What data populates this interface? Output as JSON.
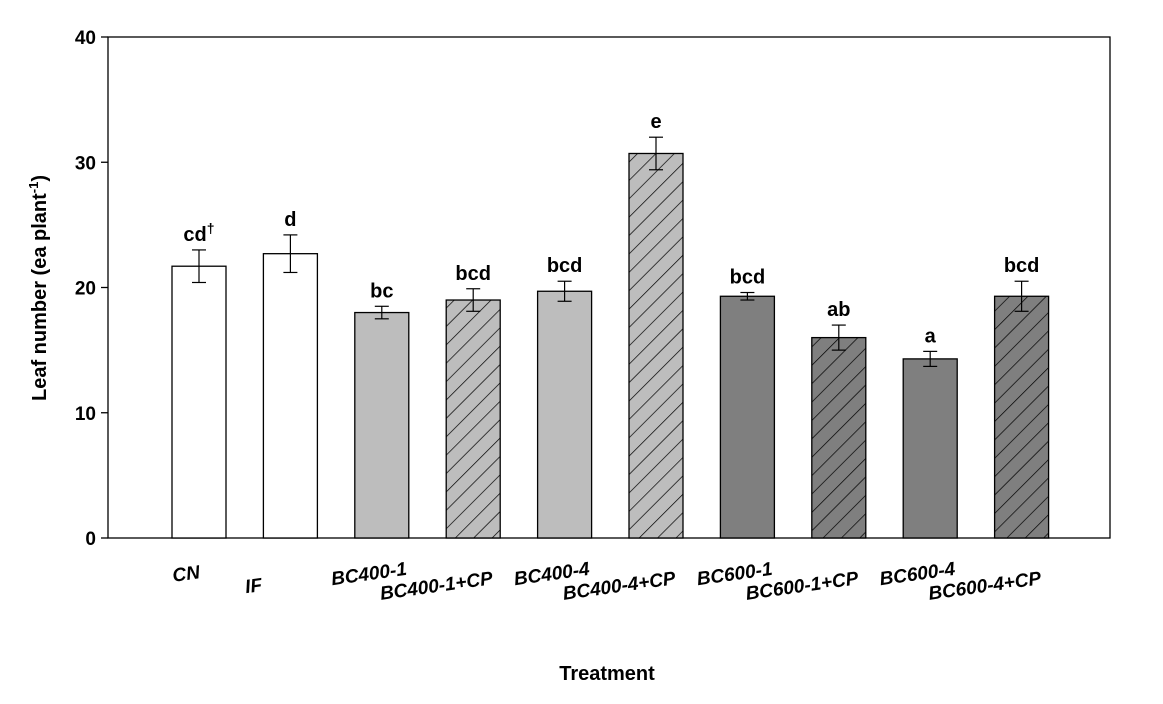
{
  "chart_data": {
    "type": "bar",
    "xlabel": "Treatment",
    "ylabel": "Leaf number (ea plant",
    "ylabel_superscript": "-1",
    "ylabel_suffix": ")",
    "ylim": [
      0,
      40
    ],
    "yticks": [
      "0",
      "10",
      "20",
      "30",
      "40"
    ],
    "grid": false,
    "legend": "none",
    "categories": [
      "CN",
      "IF",
      "BC400-1",
      "BC400-1+CP",
      "BC400-4",
      "BC400-4+CP",
      "BC600-1",
      "BC600-1+CP",
      "BC600-4",
      "BC600-4+CP"
    ],
    "values": [
      21.7,
      22.7,
      18.0,
      19.0,
      19.7,
      30.7,
      19.3,
      16.0,
      14.3,
      19.3
    ],
    "errors": [
      1.3,
      1.5,
      0.5,
      0.9,
      0.8,
      1.3,
      0.3,
      1.0,
      0.6,
      1.2
    ],
    "letters": [
      "cd",
      "d",
      "bc",
      "bcd",
      "bcd",
      "e",
      "bcd",
      "ab",
      "a",
      "bcd"
    ],
    "letter_superscripts": [
      "†",
      "",
      "",
      "",
      "",
      "",
      "",
      "",
      "",
      ""
    ],
    "fills": [
      "#ffffff",
      "#ffffff",
      "#bdbdbd",
      "#bdbdbd",
      "#bdbdbd",
      "#bdbdbd",
      "#7f7f7f",
      "#7f7f7f",
      "#7f7f7f",
      "#7f7f7f"
    ],
    "hatched": [
      false,
      false,
      false,
      true,
      false,
      true,
      false,
      true,
      false,
      true
    ]
  }
}
